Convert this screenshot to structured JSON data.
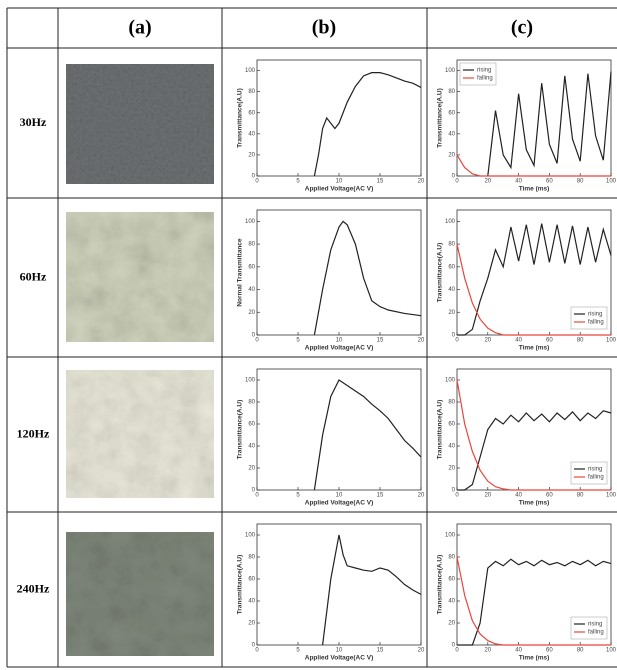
{
  "table": {
    "header": [
      "(a)",
      "(b)",
      "(c)"
    ],
    "rows": [
      {
        "label": "30Hz",
        "b": {
          "type": "line",
          "xlabel": "Applied Voltage(AC V)",
          "ylabel": "Transmittance(A.U)",
          "color": "#222222",
          "x": [
            7,
            7.5,
            8,
            8.5,
            9,
            9.5,
            10,
            11,
            12,
            13,
            14,
            15,
            16,
            17,
            18,
            19,
            20
          ],
          "values": [
            0,
            20,
            45,
            55,
            50,
            45,
            50,
            70,
            85,
            95,
            98,
            98,
            96,
            93,
            90,
            88,
            84
          ],
          "xlim": [
            0,
            20
          ],
          "ylim": [
            0,
            110
          ],
          "xticks": [
            0,
            5,
            10,
            15,
            20
          ],
          "yticks": [
            0,
            20,
            40,
            60,
            80,
            100
          ]
        },
        "c": {
          "type": "line",
          "xlabel": "Time (ms)",
          "ylabel": "Transmittance(A.U)",
          "legend": "upper left",
          "x": [
            0,
            5,
            10,
            15,
            20,
            25,
            30,
            35,
            40,
            45,
            50,
            55,
            60,
            65,
            70,
            75,
            80,
            85,
            90,
            95,
            100
          ],
          "series": [
            {
              "name": "rising",
              "color": "#222222",
              "values": [
                null,
                null,
                null,
                null,
                0,
                62,
                20,
                8,
                78,
                25,
                10,
                88,
                30,
                12,
                95,
                35,
                14,
                97,
                38,
                15,
                99
              ]
            },
            {
              "name": "falling",
              "color": "#e8453c",
              "values": [
                20,
                8,
                2,
                0,
                0,
                0,
                0,
                0,
                0,
                0,
                0,
                0,
                0,
                0,
                0,
                0,
                0,
                0,
                0,
                0,
                0
              ]
            }
          ],
          "xlim": [
            0,
            100
          ],
          "ylim": [
            0,
            110
          ],
          "xticks": [
            0,
            20,
            40,
            60,
            80,
            100
          ],
          "yticks": [
            0,
            20,
            40,
            60,
            80,
            100
          ]
        }
      },
      {
        "label": "60Hz",
        "b": {
          "type": "line",
          "xlabel": "Applied Voltage(AC V)",
          "ylabel": "Normal Transmittance",
          "color": "#222222",
          "x": [
            7,
            8,
            9,
            10,
            10.5,
            11,
            12,
            13,
            14,
            15,
            16,
            18,
            20
          ],
          "values": [
            0,
            40,
            75,
            95,
            100,
            97,
            80,
            50,
            30,
            25,
            22,
            19,
            17
          ],
          "xlim": [
            0,
            20
          ],
          "ylim": [
            0,
            110
          ],
          "xticks": [
            0,
            5,
            10,
            15,
            20
          ],
          "yticks": [
            0,
            20,
            40,
            60,
            80,
            100
          ]
        },
        "c": {
          "type": "line",
          "xlabel": "Time (ms)",
          "ylabel": "Transmittance(A.U)",
          "legend": "lower right",
          "x": [
            0,
            5,
            10,
            15,
            20,
            25,
            30,
            35,
            40,
            45,
            50,
            55,
            60,
            65,
            70,
            75,
            80,
            85,
            90,
            95,
            100
          ],
          "series": [
            {
              "name": "rising",
              "color": "#222222",
              "values": [
                0,
                0,
                5,
                30,
                50,
                75,
                60,
                95,
                65,
                97,
                62,
                98,
                64,
                97,
                63,
                96,
                62,
                95,
                64,
                93,
                70
              ]
            },
            {
              "name": "falling",
              "color": "#e8453c",
              "values": [
                80,
                50,
                28,
                14,
                6,
                2,
                0,
                0,
                0,
                0,
                0,
                0,
                0,
                0,
                0,
                0,
                0,
                0,
                0,
                0,
                0
              ]
            }
          ],
          "xlim": [
            0,
            100
          ],
          "ylim": [
            0,
            110
          ],
          "xticks": [
            0,
            20,
            40,
            60,
            80,
            100
          ],
          "yticks": [
            0,
            20,
            40,
            60,
            80,
            100
          ]
        }
      },
      {
        "label": "120Hz",
        "b": {
          "type": "line",
          "xlabel": "Applied Voltage(AC V)",
          "ylabel": "Transmittance(A.U)",
          "color": "#222222",
          "x": [
            7,
            8,
            9,
            10,
            11,
            12,
            13,
            14,
            15,
            16,
            17,
            18,
            19,
            20
          ],
          "values": [
            0,
            50,
            85,
            100,
            95,
            90,
            85,
            78,
            72,
            65,
            55,
            45,
            38,
            30
          ],
          "xlim": [
            0,
            20
          ],
          "ylim": [
            0,
            110
          ],
          "xticks": [
            0,
            5,
            10,
            15,
            20
          ],
          "yticks": [
            0,
            20,
            40,
            60,
            80,
            100
          ]
        },
        "c": {
          "type": "line",
          "xlabel": "Time (ms)",
          "ylabel": "Transmittance(A.U)",
          "legend": "lower right",
          "x": [
            0,
            5,
            10,
            15,
            20,
            25,
            30,
            35,
            40,
            45,
            50,
            55,
            60,
            65,
            70,
            75,
            80,
            85,
            90,
            95,
            100
          ],
          "series": [
            {
              "name": "rising",
              "color": "#222222",
              "values": [
                0,
                0,
                5,
                30,
                55,
                65,
                60,
                68,
                62,
                70,
                63,
                69,
                62,
                70,
                64,
                71,
                63,
                70,
                65,
                72,
                70
              ]
            },
            {
              "name": "falling",
              "color": "#e8453c",
              "values": [
                100,
                60,
                35,
                18,
                8,
                3,
                1,
                0,
                0,
                0,
                0,
                0,
                0,
                0,
                0,
                0,
                0,
                0,
                0,
                0,
                0
              ]
            }
          ],
          "xlim": [
            0,
            100
          ],
          "ylim": [
            0,
            110
          ],
          "xticks": [
            0,
            20,
            40,
            60,
            80,
            100
          ],
          "yticks": [
            0,
            20,
            40,
            60,
            80,
            100
          ]
        }
      },
      {
        "label": "240Hz",
        "b": {
          "type": "line",
          "xlabel": "Applied Voltage(AC V)",
          "ylabel": "Transmittance(A.U)",
          "color": "#222222",
          "x": [
            8,
            8.5,
            9,
            9.5,
            10,
            10.5,
            11,
            12,
            13,
            14,
            15,
            16,
            17,
            18,
            19,
            20
          ],
          "values": [
            0,
            30,
            60,
            80,
            100,
            82,
            72,
            70,
            68,
            67,
            70,
            68,
            62,
            55,
            50,
            46
          ],
          "xlim": [
            0,
            20
          ],
          "ylim": [
            0,
            110
          ],
          "xticks": [
            0,
            5,
            10,
            15,
            20
          ],
          "yticks": [
            0,
            20,
            40,
            60,
            80,
            100
          ]
        },
        "c": {
          "type": "line",
          "xlabel": "Time (ms)",
          "ylabel": "Transmittance(A.U)",
          "legend": "lower right",
          "x": [
            0,
            5,
            10,
            15,
            20,
            25,
            30,
            35,
            40,
            45,
            50,
            55,
            60,
            65,
            70,
            75,
            80,
            85,
            90,
            95,
            100
          ],
          "series": [
            {
              "name": "rising",
              "color": "#222222",
              "values": [
                0,
                0,
                0,
                20,
                70,
                76,
                72,
                78,
                73,
                76,
                72,
                77,
                73,
                75,
                72,
                76,
                73,
                77,
                72,
                76,
                74
              ]
            },
            {
              "name": "falling",
              "color": "#e8453c",
              "values": [
                80,
                45,
                22,
                10,
                4,
                1,
                0,
                0,
                0,
                0,
                0,
                0,
                0,
                0,
                0,
                0,
                0,
                0,
                0,
                0,
                0
              ]
            }
          ],
          "xlim": [
            0,
            100
          ],
          "ylim": [
            0,
            110
          ],
          "xticks": [
            0,
            20,
            40,
            60,
            80,
            100
          ],
          "yticks": [
            0,
            20,
            40,
            60,
            80,
            100
          ]
        }
      }
    ]
  }
}
